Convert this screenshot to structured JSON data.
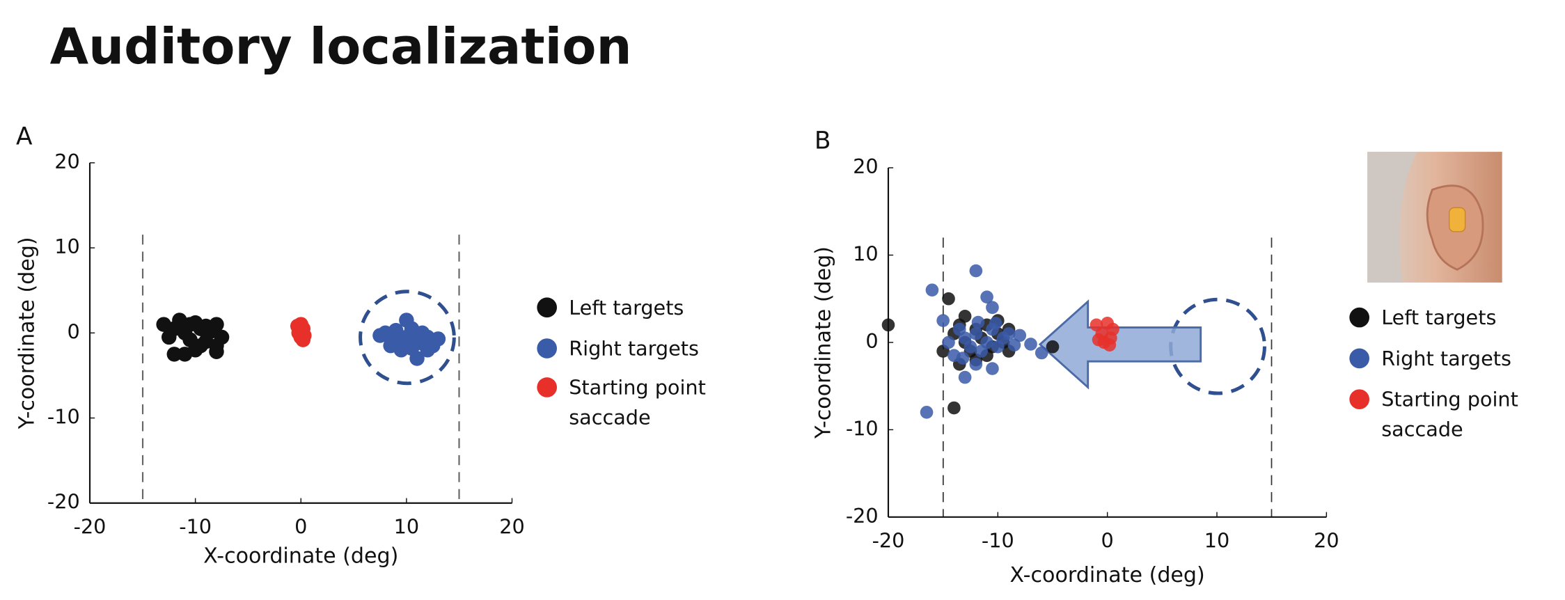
{
  "title": "Auditory localization",
  "chart_data": [
    {
      "type": "scatter",
      "panel": "A",
      "xlabel": "X-coordinate (deg)",
      "ylabel": "Y-coordinate (deg)",
      "xlim": [
        -20,
        20
      ],
      "ylim": [
        -20,
        20
      ],
      "xticks": [
        -20,
        -10,
        0,
        10,
        20
      ],
      "yticks": [
        -20,
        -10,
        0,
        10,
        20
      ],
      "series": [
        {
          "name": "Left targets",
          "color": "#111111",
          "x": [
            -13,
            -12,
            -11.5,
            -11,
            -10.5,
            -10,
            -9.5,
            -9,
            -8.5,
            -8,
            -7.5,
            -8,
            -9,
            -10,
            -11,
            -12,
            -12.5,
            -9.5,
            -8,
            -10.5
          ],
          "values": [
            1,
            0.5,
            1.5,
            0,
            1,
            1.2,
            0.5,
            0.8,
            0.2,
            1,
            -0.5,
            -1.5,
            -1,
            -2,
            -2.5,
            -2.5,
            -0.5,
            -1.5,
            -2.2,
            -0.8
          ]
        },
        {
          "name": "Right targets",
          "color": "#3a5ba8",
          "x": [
            8,
            8.5,
            9,
            9.5,
            10,
            10,
            10.5,
            11,
            11.5,
            12,
            12.5,
            11,
            9.5,
            8.5,
            12,
            7.5,
            10.5,
            11.5,
            9,
            13
          ],
          "values": [
            0,
            -0.5,
            0.3,
            -1,
            1.5,
            -0.5,
            0.5,
            -1,
            0,
            -0.5,
            -1.5,
            -3,
            -2,
            -1.5,
            -2,
            -0.3,
            -1.8,
            -1.2,
            -0.8,
            -0.7
          ]
        },
        {
          "name": "Starting point saccade",
          "color": "#e8302a",
          "x": [
            0,
            0.2,
            -0.2,
            0,
            0.3,
            -0.3,
            0.1,
            0.2
          ],
          "values": [
            1,
            0.5,
            0,
            -0.5,
            -0.3,
            0.8,
            0.2,
            -0.8
          ]
        }
      ]
    },
    {
      "type": "scatter",
      "panel": "B",
      "xlabel": "X-coordinate (deg)",
      "ylabel": "Y-coordinate (deg)",
      "xlim": [
        -20,
        20
      ],
      "ylim": [
        -20,
        20
      ],
      "xticks": [
        -20,
        -10,
        0,
        10,
        20
      ],
      "yticks": [
        -20,
        -10,
        0,
        10,
        20
      ],
      "series": [
        {
          "name": "Left targets",
          "color": "#111111",
          "x": [
            -20,
            -14.5,
            -15,
            -14,
            -13.5,
            -13,
            -12.5,
            -12,
            -11.5,
            -11,
            -10.5,
            -10,
            -9.5,
            -9,
            -13.5,
            -12,
            -14,
            -5,
            -11,
            -10,
            -13,
            -9
          ],
          "values": [
            2,
            5,
            -1,
            1,
            2,
            0,
            -1,
            1.5,
            0.5,
            2,
            -0.5,
            1,
            0,
            1.5,
            -2.5,
            -2,
            -7.5,
            -0.5,
            -1.5,
            2.5,
            3,
            -1
          ]
        },
        {
          "name": "Right targets",
          "color": "#3a5ba8",
          "x": [
            -16,
            -12,
            -16.5,
            -13,
            -11,
            -10.5,
            -15,
            -14.5,
            -14,
            -13.5,
            -13,
            -12.5,
            -12,
            -11.5,
            -11,
            -10.5,
            -10,
            -9.5,
            -9,
            -8.5,
            -8,
            -7,
            -6,
            -10.5,
            -12,
            -11.8,
            -13.2,
            -10.2
          ],
          "values": [
            6,
            8.2,
            -8,
            -4,
            5.2,
            4,
            2.5,
            0,
            -1.5,
            1.5,
            0.5,
            -0.5,
            1,
            -1,
            0,
            1.5,
            -0.5,
            0.5,
            1,
            -0.3,
            0.8,
            -0.2,
            -1.2,
            -3,
            -2.5,
            2.3,
            -1.8,
            2.2
          ]
        },
        {
          "name": "Starting point saccade",
          "color": "#e8302a",
          "x": [
            -1,
            -0.5,
            0,
            0.3,
            -0.3,
            0.5,
            -0.8,
            0.2
          ],
          "values": [
            2,
            1,
            2.2,
            0.5,
            0,
            1.5,
            0.3,
            -0.3
          ]
        }
      ]
    }
  ]
}
